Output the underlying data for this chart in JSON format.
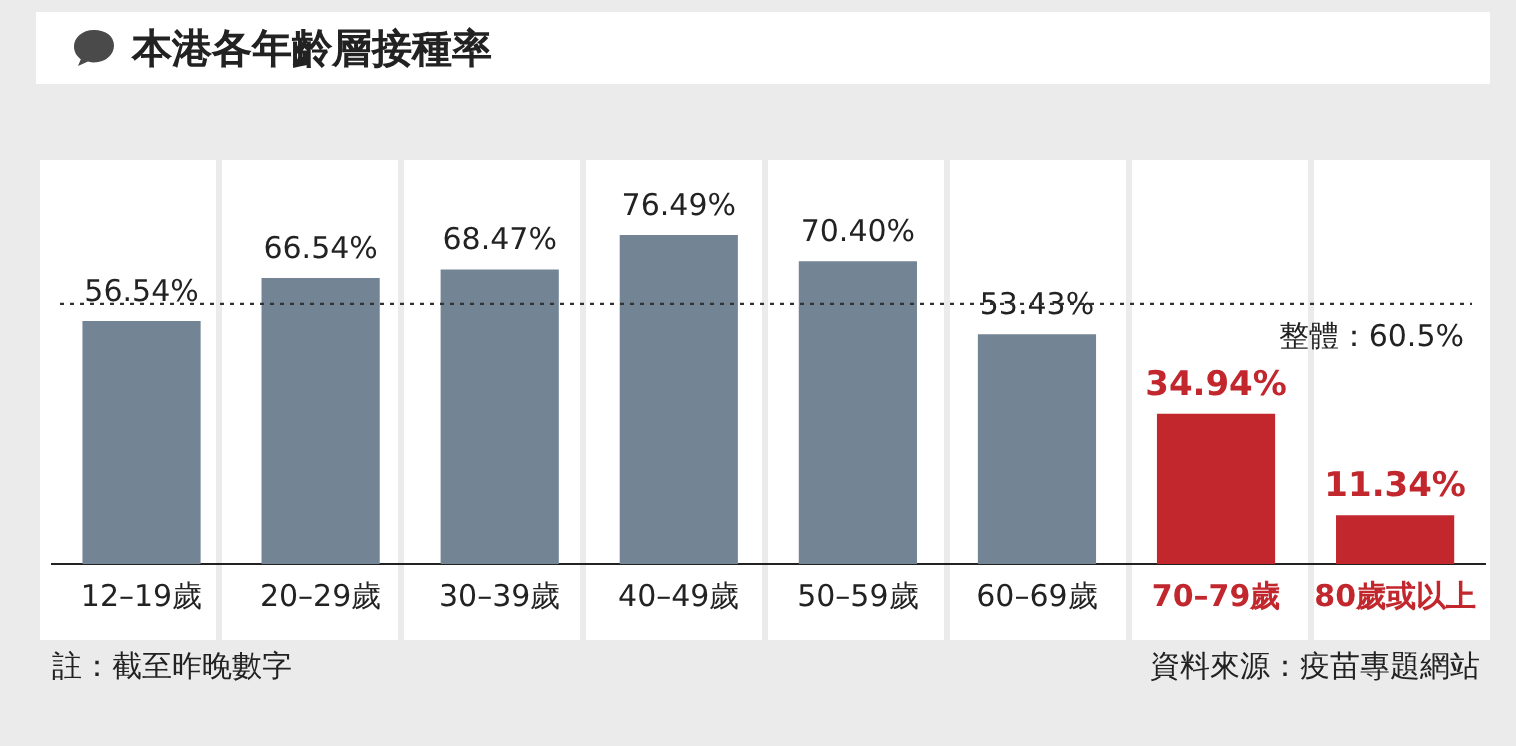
{
  "chart_data": {
    "type": "bar",
    "title": "本港各年齡層接種率",
    "categories": [
      "12–19歲",
      "20–29歲",
      "30–39歲",
      "40–49歲",
      "50–59歲",
      "60–69歲",
      "70–79歲",
      "80歲或以上"
    ],
    "values": [
      56.54,
      66.54,
      68.47,
      76.49,
      70.4,
      53.43,
      34.94,
      11.34
    ],
    "colors": [
      "#738495",
      "#738495",
      "#738495",
      "#738495",
      "#738495",
      "#738495",
      "#c1272d",
      "#c1272d"
    ],
    "value_labels": [
      "56.54%",
      "66.54%",
      "68.47%",
      "76.49%",
      "70.40%",
      "53.43%",
      "34.94%",
      "11.34%"
    ],
    "ref_lines": [
      {
        "axis": "y",
        "value": 60.5,
        "label": "整體：60.5%",
        "color": "#333333",
        "line_style": "dotted"
      }
    ],
    "grid": false,
    "legend": false,
    "tick_labels": "x",
    "annotations": [
      "註：截至昨晚數字",
      "資料來源：疫苗專題網站"
    ]
  }
}
